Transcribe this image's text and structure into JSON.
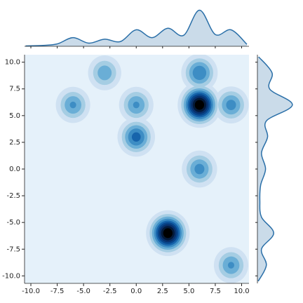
{
  "chart_data": {
    "type": "kde-joint",
    "clusters": [
      {
        "x": -6,
        "y": 6,
        "peak": 0.42
      },
      {
        "x": -3,
        "y": 9,
        "peak": 0.38
      },
      {
        "x": 0,
        "y": 6,
        "peak": 0.42
      },
      {
        "x": 0,
        "y": 3,
        "peak": 0.55
      },
      {
        "x": 3,
        "y": -6,
        "peak": 1.0
      },
      {
        "x": 6,
        "y": 9,
        "peak": 0.5
      },
      {
        "x": 6,
        "y": 6,
        "peak": 1.0
      },
      {
        "x": 6,
        "y": 0,
        "peak": 0.45
      },
      {
        "x": 9,
        "y": 6,
        "peak": 0.45
      },
      {
        "x": 9,
        "y": -9,
        "peak": 0.42
      }
    ],
    "level_colors": [
      "#cfe1f2",
      "#a5cde3",
      "#6aaed6",
      "#3d8dc4",
      "#1764ab",
      "#08468b",
      "#08306b",
      "#041a3a",
      "#000000"
    ],
    "background_color": "#e5f1fa",
    "line_color": "#2a6fa8",
    "x_marginal": {
      "x": [
        -10.5,
        -9,
        -7.5,
        -6,
        -4.5,
        -3,
        -1.5,
        0,
        1.5,
        3,
        4.5,
        6,
        7.5,
        9,
        10.5
      ],
      "values": [
        0.01,
        0.02,
        0.06,
        0.22,
        0.08,
        0.18,
        0.12,
        0.42,
        0.22,
        0.46,
        0.28,
        0.92,
        0.3,
        0.42,
        0.05
      ]
    },
    "y_marginal": {
      "y": [
        -10.5,
        -9,
        -7.5,
        -6,
        -4.5,
        -3,
        -1.5,
        0,
        1.5,
        3,
        4.5,
        6,
        7.5,
        9,
        10.5
      ],
      "values": [
        0.02,
        0.22,
        0.1,
        0.4,
        0.1,
        0.06,
        0.08,
        0.2,
        0.1,
        0.25,
        0.22,
        0.86,
        0.3,
        0.36,
        0.03
      ]
    },
    "marginal_lim": [
      0,
      1
    ],
    "xlim": [
      -10.6,
      10.7
    ],
    "ylim": [
      -10.7,
      10.7
    ],
    "xticks": [
      {
        "value": -10,
        "label": "-10.0"
      },
      {
        "value": -7.5,
        "label": "-7.5"
      },
      {
        "value": -5,
        "label": "-5.0"
      },
      {
        "value": -2.5,
        "label": "-2.5"
      },
      {
        "value": 0,
        "label": "0.0"
      },
      {
        "value": 2.5,
        "label": "2.5"
      },
      {
        "value": 5,
        "label": "5.0"
      },
      {
        "value": 7.5,
        "label": "7.5"
      },
      {
        "value": 10,
        "label": "10.0"
      }
    ],
    "yticks": [
      {
        "value": -10,
        "label": "-10.0"
      },
      {
        "value": -7.5,
        "label": "-7.5"
      },
      {
        "value": -5,
        "label": "-5.0"
      },
      {
        "value": -2.5,
        "label": "-2.5"
      },
      {
        "value": 0,
        "label": "0.0"
      },
      {
        "value": 2.5,
        "label": "2.5"
      },
      {
        "value": 5,
        "label": "5.0"
      },
      {
        "value": 7.5,
        "label": "7.5"
      },
      {
        "value": 10,
        "label": "10.0"
      }
    ]
  }
}
